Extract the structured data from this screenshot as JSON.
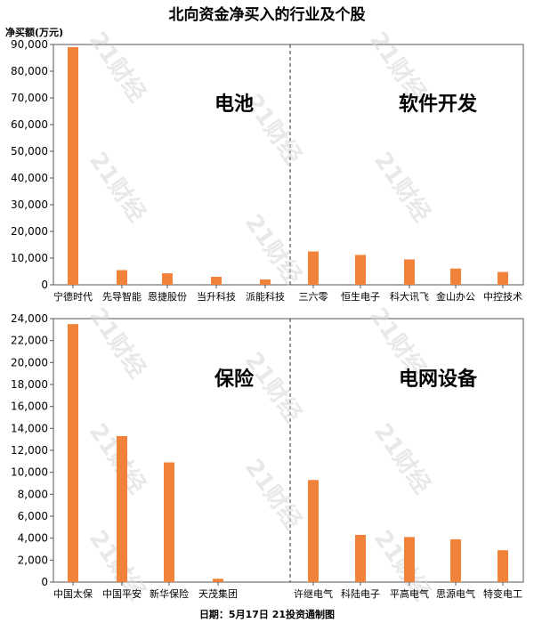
{
  "title": "北向资金净买入的行业及个股",
  "ylabel": "净买额(万元)",
  "footer": "日期：5月17日  21投资通制图",
  "watermark": "21财经",
  "colors": {
    "bar": "#f0823a",
    "axis": "#555555",
    "grid": "#333333"
  },
  "chart_data": [
    {
      "type": "bar",
      "ylim": [
        0,
        90000
      ],
      "yticks": [
        0,
        10000,
        20000,
        30000,
        40000,
        50000,
        60000,
        70000,
        80000,
        90000
      ],
      "groups": [
        {
          "label": "电池",
          "categories": [
            "宁德时代",
            "先导智能",
            "恩捷股份",
            "当升科技",
            "派能科技"
          ],
          "values": [
            89000,
            5500,
            4300,
            3000,
            2000
          ]
        },
        {
          "label": "软件开发",
          "categories": [
            "三六零",
            "恒生电子",
            "科大讯飞",
            "金山办公",
            "中控技术"
          ],
          "values": [
            12500,
            11200,
            9500,
            6100,
            4800
          ]
        }
      ]
    },
    {
      "type": "bar",
      "ylim": [
        0,
        24000
      ],
      "yticks": [
        0,
        2000,
        4000,
        6000,
        8000,
        10000,
        12000,
        14000,
        16000,
        18000,
        20000,
        22000,
        24000
      ],
      "groups": [
        {
          "label": "保险",
          "categories": [
            "中国太保",
            "中国平安",
            "新华保险",
            "天茂集团"
          ],
          "values": [
            23500,
            13300,
            10900,
            300
          ]
        },
        {
          "label": "电网设备",
          "categories": [
            "许继电气",
            "科陆电子",
            "平高电气",
            "思源电气",
            "特变电工"
          ],
          "values": [
            9300,
            4300,
            4100,
            3900,
            2900
          ]
        }
      ]
    }
  ]
}
